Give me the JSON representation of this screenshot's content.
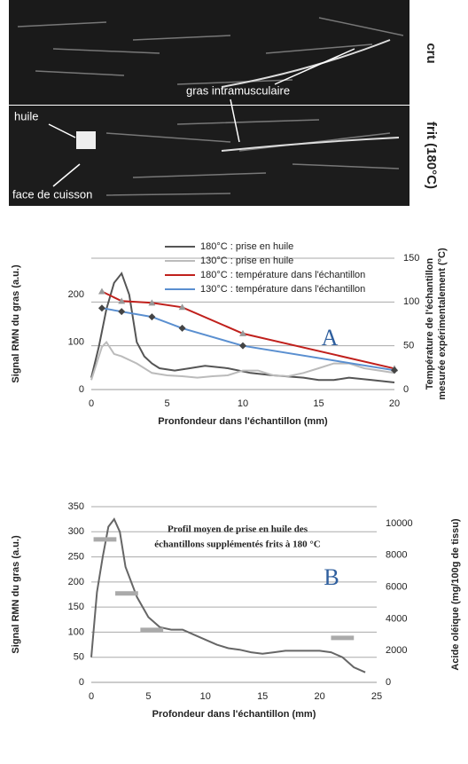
{
  "image": {
    "row_labels": [
      "cru",
      "frit (180°C)"
    ],
    "annotations": [
      "gras intramusculaire",
      "huile",
      "face de cuisson"
    ]
  },
  "chart_data": [
    {
      "type": "line",
      "annotations": [
        "A"
      ],
      "xlabel": "Pronfondeur dans l'échantillon (mm)",
      "ylabel": "Signal RMN du gras (a.u.)",
      "y2label": [
        "Température de l'échantillon",
        "mesurée expérimentalement (°C)"
      ],
      "xlim": [
        0,
        20
      ],
      "xticks": [
        0,
        5,
        10,
        15,
        20
      ],
      "ylim": [
        0,
        277
      ],
      "yticks": [
        0,
        100,
        200
      ],
      "y2lim": [
        0,
        150
      ],
      "y2ticks": [
        0,
        50,
        100,
        150
      ],
      "grid": "y2",
      "legend": "top-right",
      "series": [
        {
          "name": "180°C : prise en huile",
          "color": "#555555",
          "x": [
            0,
            0.5,
            1,
            1.5,
            2,
            2.5,
            3,
            3.5,
            4,
            4.5,
            5.5,
            6.5,
            7.5,
            9,
            10.5,
            12,
            14,
            15,
            16,
            17,
            18.5,
            20
          ],
          "values": [
            25,
            90,
            170,
            225,
            245,
            200,
            100,
            70,
            55,
            45,
            40,
            45,
            50,
            45,
            35,
            30,
            25,
            20,
            20,
            25,
            20,
            15
          ]
        },
        {
          "name": "130°C : prise en huile",
          "color": "#bbbbbb",
          "x": [
            0,
            0.4,
            0.7,
            1,
            1.5,
            2,
            3,
            4,
            5,
            6,
            7,
            8,
            9,
            10,
            11,
            12,
            13,
            14,
            15,
            16,
            17,
            18,
            19,
            20
          ],
          "values": [
            20,
            60,
            90,
            100,
            75,
            70,
            55,
            35,
            30,
            28,
            25,
            28,
            30,
            40,
            40,
            30,
            28,
            35,
            45,
            55,
            55,
            45,
            40,
            35
          ]
        },
        {
          "name": "180°C : température dans l'échantillon",
          "color": "#c0201c",
          "axis": "y2",
          "marker": "triangle",
          "x": [
            0.7,
            2,
            4,
            6,
            10,
            20
          ],
          "values": [
            112,
            101,
            99,
            94,
            64,
            24
          ]
        },
        {
          "name": "130°C : température dans l'échantillon",
          "color": "#5a8fd0",
          "axis": "y2",
          "marker": "diamond",
          "x": [
            0.7,
            2,
            4,
            6,
            10,
            20
          ],
          "values": [
            93,
            89,
            83,
            70,
            50,
            22
          ]
        }
      ]
    },
    {
      "type": "line",
      "annotations": [
        "Profil moyen de prise en huile des",
        "échantillons supplémentés frits à 180 °C",
        "B"
      ],
      "xlabel": "Profondeur dans l'échantillon (mm)",
      "ylabel": "Signal RMN du gras (a.u.)",
      "y2label": [
        "Acide oléique (mg/100g de tissu)"
      ],
      "xlim": [
        0,
        25
      ],
      "xticks": [
        0,
        5,
        10,
        15,
        20,
        25
      ],
      "ylim": [
        0,
        350
      ],
      "yticks": [
        0,
        50,
        100,
        150,
        200,
        250,
        300,
        350
      ],
      "y2lim": [
        0,
        11060
      ],
      "y2ticks": [
        0,
        2000,
        4000,
        6000,
        8000,
        10000
      ],
      "grid": "y",
      "series": [
        {
          "color": "#666666",
          "x": [
            0,
            0.5,
            1,
            1.5,
            2,
            2.5,
            3,
            4,
            5,
            6,
            7,
            8,
            9,
            10,
            11,
            12,
            13,
            14,
            15,
            16,
            17,
            18,
            19,
            20,
            21,
            22,
            23,
            24
          ],
          "values": [
            50,
            180,
            250,
            310,
            325,
            300,
            230,
            170,
            130,
            110,
            105,
            105,
            95,
            85,
            75,
            68,
            65,
            60,
            57,
            60,
            63,
            63,
            63,
            63,
            60,
            50,
            30,
            20
          ]
        },
        {
          "color": "#aaaaaa",
          "axis": "y2",
          "style": "segments",
          "x": [
            1.2,
            3.1,
            5.3,
            22
          ],
          "values": [
            9000,
            5600,
            3300,
            2800
          ]
        }
      ]
    }
  ]
}
